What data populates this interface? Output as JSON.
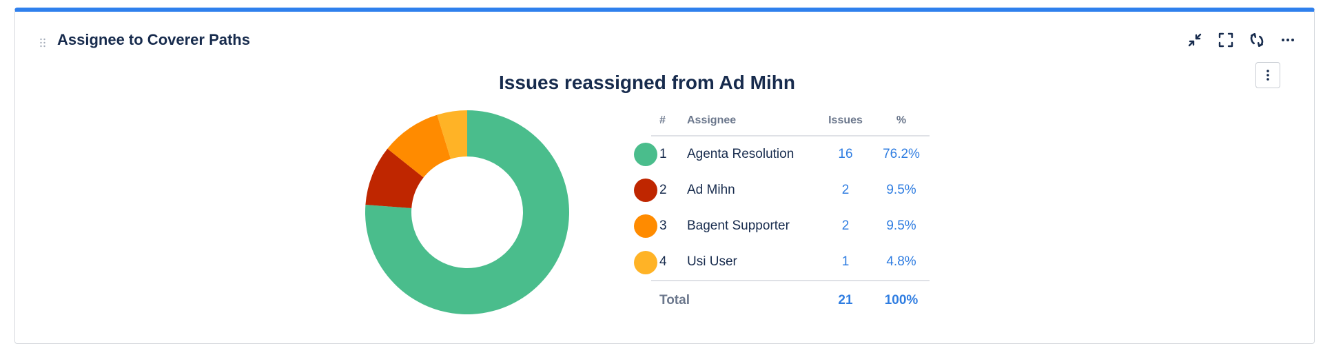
{
  "widget": {
    "title": "Assignee to Coverer Paths",
    "tools": [
      {
        "name": "minimize-icon"
      },
      {
        "name": "fullscreen-icon"
      },
      {
        "name": "refresh-icon"
      },
      {
        "name": "more-horizontal-icon"
      }
    ],
    "options_icon": "more-vertical-icon"
  },
  "table": {
    "headers": {
      "num": "#",
      "assignee": "Assignee",
      "issues": "Issues",
      "pct": "%"
    },
    "rows": [
      {
        "num": "1",
        "assignee": "Agenta Resolution",
        "issues": "16",
        "pct": "76.2%",
        "color": "#4abd8c"
      },
      {
        "num": "2",
        "assignee": "Ad Mihn",
        "issues": "2",
        "pct": "9.5%",
        "color": "#bf2600"
      },
      {
        "num": "3",
        "assignee": "Bagent Supporter",
        "issues": "2",
        "pct": "9.5%",
        "color": "#ff8b00"
      },
      {
        "num": "4",
        "assignee": "Usi User",
        "issues": "1",
        "pct": "4.8%",
        "color": "#ffb326"
      }
    ],
    "total": {
      "label": "Total",
      "issues": "21",
      "pct": "100%"
    }
  },
  "chart_data": {
    "type": "pie",
    "title": "Issues reassigned from Ad Mihn",
    "donut": true,
    "categories": [
      "Agenta Resolution",
      "Ad Mihn",
      "Bagent Supporter",
      "Usi User"
    ],
    "values": [
      16,
      2,
      2,
      1
    ],
    "colors": [
      "#4abd8c",
      "#bf2600",
      "#ff8b00",
      "#ffb326"
    ]
  }
}
